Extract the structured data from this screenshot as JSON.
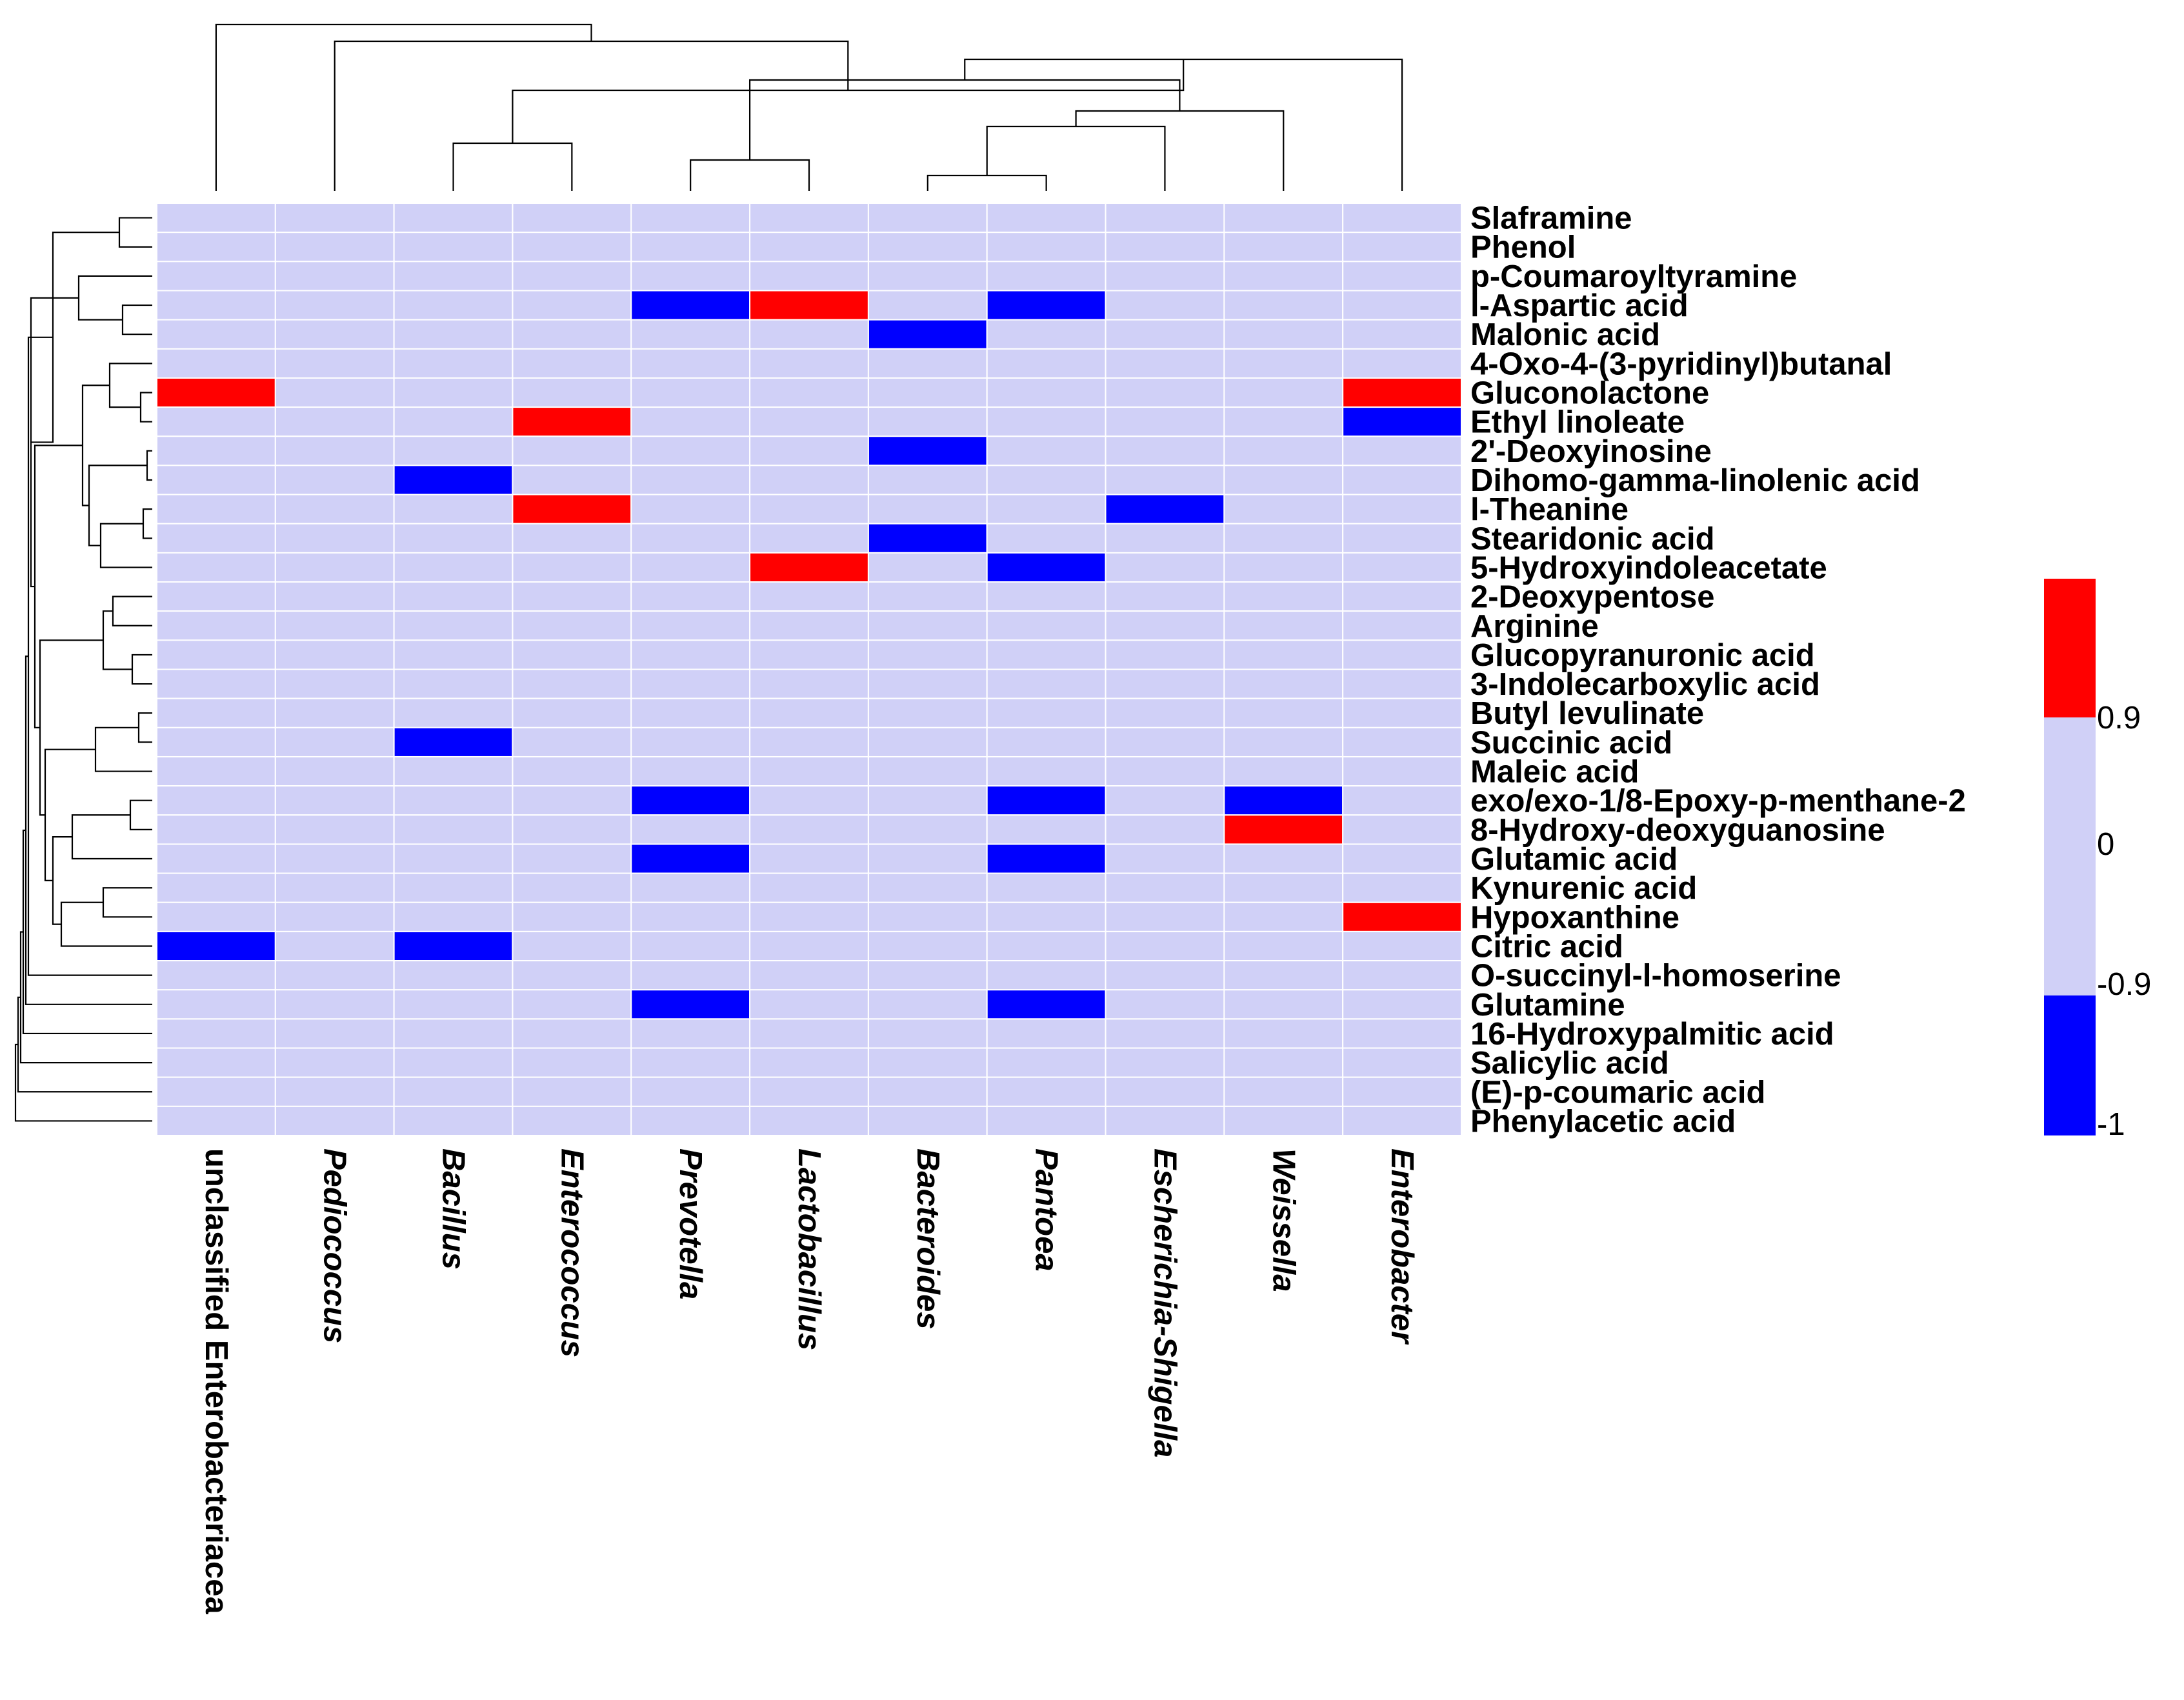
{
  "chart_data": {
    "type": "heatmap",
    "title": "",
    "columns": [
      {
        "name": "unclassified Enterobacteriacea",
        "italic": false
      },
      {
        "name": "Pediococcus",
        "italic": true
      },
      {
        "name": "Bacillus",
        "italic": true
      },
      {
        "name": "Enterococcus",
        "italic": true
      },
      {
        "name": "Prevotella",
        "italic": true
      },
      {
        "name": "Lactobacillus",
        "italic": true
      },
      {
        "name": "Bacteroides",
        "italic": true
      },
      {
        "name": "Pantoea",
        "italic": true
      },
      {
        "name": "Escherichia-Shigella",
        "italic": true
      },
      {
        "name": "Weissella",
        "italic": true
      },
      {
        "name": "Enterobacter",
        "italic": true
      }
    ],
    "rows": [
      "Slaframine",
      "Phenol",
      "p-Coumaroyltyramine",
      "l-Aspartic acid",
      "Malonic acid",
      "4-Oxo-4-(3-pyridinyl)butanal",
      "Gluconolactone",
      "Ethyl linoleate",
      "2'-Deoxyinosine",
      "Dihomo-gamma-linolenic acid",
      "l-Theanine",
      "Stearidonic acid",
      "5-Hydroxyindoleacetate",
      "2-Deoxypentose",
      "Arginine",
      "Glucopyranuronic acid",
      "3-Indolecarboxylic acid",
      "Butyl levulinate",
      "Succinic acid",
      "Maleic acid",
      "exo/exo-1/8-Epoxy-p-menthane-2",
      "8-Hydroxy-deoxyguanosine",
      "Glutamic acid",
      "Kynurenic acid",
      "Hypoxanthine",
      "Citric acid",
      "O-succinyl-l-homoserine",
      "Glutamine",
      "16-Hydroxypalmitic acid",
      "Salicylic acid",
      "(E)-p-coumaric acid",
      "Phenylacetic acid"
    ],
    "values": [
      [
        0,
        0,
        0,
        0,
        0,
        0,
        0,
        0,
        0,
        0,
        0
      ],
      [
        0,
        0,
        0,
        0,
        0,
        0,
        0,
        0,
        0,
        0,
        0
      ],
      [
        0,
        0,
        0,
        0,
        0,
        0,
        0,
        0,
        0,
        0,
        0
      ],
      [
        0,
        0,
        0,
        0,
        -1,
        1,
        0,
        -1,
        0,
        0,
        0
      ],
      [
        0,
        0,
        0,
        0,
        0,
        0,
        -1,
        0,
        0,
        0,
        0
      ],
      [
        0,
        0,
        0,
        0,
        0,
        0,
        0,
        0,
        0,
        0,
        0
      ],
      [
        1,
        0,
        0,
        0,
        0,
        0,
        0,
        0,
        0,
        0,
        1
      ],
      [
        0,
        0,
        0,
        1,
        0,
        0,
        0,
        0,
        0,
        0,
        -1
      ],
      [
        0,
        0,
        0,
        0,
        0,
        0,
        -1,
        0,
        0,
        0,
        0
      ],
      [
        0,
        0,
        -1,
        0,
        0,
        0,
        0,
        0,
        0,
        0,
        0
      ],
      [
        0,
        0,
        0,
        1,
        0,
        0,
        0,
        0,
        -1,
        0,
        0
      ],
      [
        0,
        0,
        0,
        0,
        0,
        0,
        -1,
        0,
        0,
        0,
        0
      ],
      [
        0,
        0,
        0,
        0,
        0,
        1,
        0,
        -1,
        0,
        0,
        0
      ],
      [
        0,
        0,
        0,
        0,
        0,
        0,
        0,
        0,
        0,
        0,
        0
      ],
      [
        0,
        0,
        0,
        0,
        0,
        0,
        0,
        0,
        0,
        0,
        0
      ],
      [
        0,
        0,
        0,
        0,
        0,
        0,
        0,
        0,
        0,
        0,
        0
      ],
      [
        0,
        0,
        0,
        0,
        0,
        0,
        0,
        0,
        0,
        0,
        0
      ],
      [
        0,
        0,
        0,
        0,
        0,
        0,
        0,
        0,
        0,
        0,
        0
      ],
      [
        0,
        0,
        -1,
        0,
        0,
        0,
        0,
        0,
        0,
        0,
        0
      ],
      [
        0,
        0,
        0,
        0,
        0,
        0,
        0,
        0,
        0,
        0,
        0
      ],
      [
        0,
        0,
        0,
        0,
        -1,
        0,
        0,
        -1,
        0,
        -1,
        0
      ],
      [
        0,
        0,
        0,
        0,
        0,
        0,
        0,
        0,
        0,
        1,
        0
      ],
      [
        0,
        0,
        0,
        0,
        -1,
        0,
        0,
        -1,
        0,
        0,
        0
      ],
      [
        0,
        0,
        0,
        0,
        0,
        0,
        0,
        0,
        0,
        0,
        0
      ],
      [
        0,
        0,
        0,
        0,
        0,
        0,
        0,
        0,
        0,
        0,
        1
      ],
      [
        -1,
        0,
        -1,
        0,
        0,
        0,
        0,
        0,
        0,
        0,
        0
      ],
      [
        0,
        0,
        0,
        0,
        0,
        0,
        0,
        0,
        0,
        0,
        0
      ],
      [
        0,
        0,
        0,
        0,
        -1,
        0,
        0,
        -1,
        0,
        0,
        0
      ],
      [
        0,
        0,
        0,
        0,
        0,
        0,
        0,
        0,
        0,
        0,
        0
      ],
      [
        0,
        0,
        0,
        0,
        0,
        0,
        0,
        0,
        0,
        0,
        0
      ],
      [
        0,
        0,
        0,
        0,
        0,
        0,
        0,
        0,
        0,
        0,
        0
      ],
      [
        0,
        0,
        0,
        0,
        0,
        0,
        0,
        0,
        0,
        0,
        0
      ]
    ],
    "legend": {
      "type": "color-key",
      "position": "right",
      "ticks": [
        {
          "label": "0.9",
          "value": 0.9
        },
        {
          "label": "0",
          "value": 0
        },
        {
          "label": "-0.9",
          "value": -0.9
        },
        {
          "label": "-1",
          "value": -1
        }
      ],
      "bins": [
        {
          "from": 0.9,
          "to": 1,
          "color": "#ff0000"
        },
        {
          "from": -0.9,
          "to": 0.9,
          "color": "#d0d0f7"
        },
        {
          "from": -1,
          "to": -0.9,
          "color": "#0000ff"
        }
      ]
    },
    "colors": {
      "positive": "#ff0000",
      "neutral": "#d0d0f7",
      "negative": "#0000ff"
    },
    "row_dendrogram": true,
    "column_dendrogram": true
  }
}
